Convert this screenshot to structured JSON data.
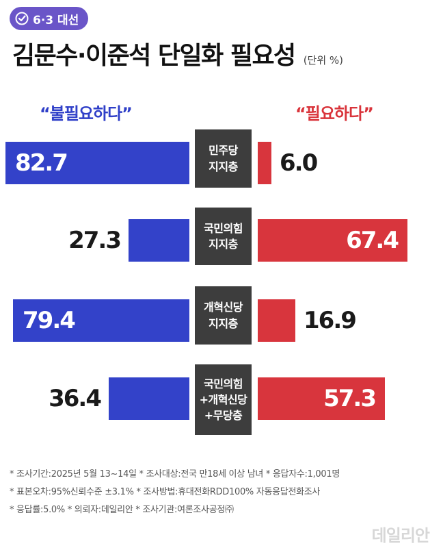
{
  "header": {
    "badge_label": "6·3 대선",
    "title": "김문수·이준석 단일화 필요성",
    "unit": "(단위 %)"
  },
  "colors": {
    "accent": "#6a55c8",
    "blue": "#3342c9",
    "red": "#d8353d",
    "category_bg": "#3d3d3d"
  },
  "chart_data": {
    "type": "bar",
    "orientation": "horizontal-diverging",
    "series": [
      {
        "name": "“불필요하다”",
        "color": "#3342c9",
        "side": "left",
        "values": [
          82.7,
          27.3,
          79.4,
          36.4
        ]
      },
      {
        "name": "“필요하다”",
        "color": "#d8353d",
        "side": "right",
        "values": [
          6.0,
          67.4,
          16.9,
          57.3
        ]
      }
    ],
    "categories": [
      [
        "민주당",
        "지지층"
      ],
      [
        "국민의힘",
        "지지층"
      ],
      [
        "개혁신당",
        "지지층"
      ],
      [
        "국민의힘",
        "+개혁신당",
        "+무당층"
      ]
    ],
    "value_labels": {
      "left": [
        "82.7",
        "27.3",
        "79.4",
        "36.4"
      ],
      "right": [
        "6.0",
        "67.4",
        "16.9",
        "57.3"
      ]
    }
  },
  "footnotes": [
    "* 조사기간:2025년 5월 13~14일  * 조사대상:전국 만18세 이상 남녀  * 응답자수:1,001명",
    "* 표본오차:95%신뢰수준 ±3.1%  * 조사방법:휴대전화RDD100% 자동응답전화조사",
    "* 응답률:5.0%  * 의뢰자:데일리안  * 조사기관:여론조사공정㈜"
  ],
  "watermark": "데일리안"
}
